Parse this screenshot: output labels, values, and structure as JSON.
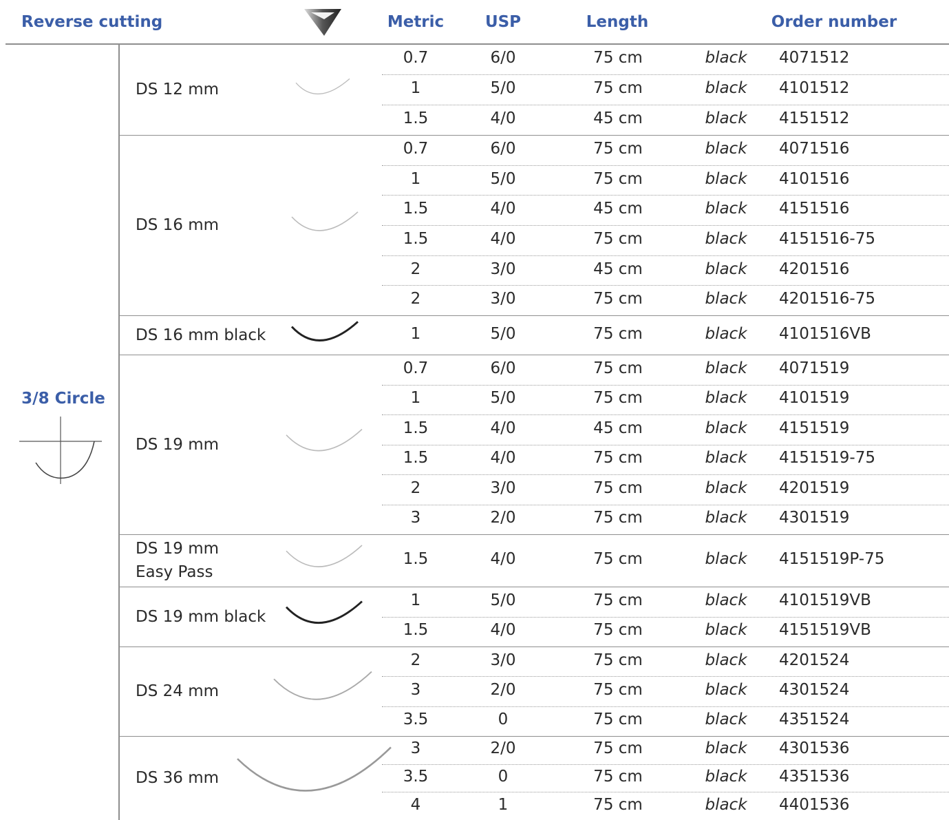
{
  "header": {
    "title": "Reverse cutting",
    "columns": [
      "Metric",
      "USP",
      "Length",
      "Order number"
    ]
  },
  "curvature": "3/8 Circle",
  "groups": [
    {
      "name": "DS 12 mm",
      "rows": [
        [
          "0.7",
          "6/0",
          "75 cm",
          "black",
          "4071512"
        ],
        [
          "1",
          "5/0",
          "75 cm",
          "black",
          "4101512"
        ],
        [
          "1.5",
          "4/0",
          "45 cm",
          "black",
          "4151512"
        ]
      ]
    },
    {
      "name": "DS 16 mm",
      "rows": [
        [
          "0.7",
          "6/0",
          "75 cm",
          "black",
          "4071516"
        ],
        [
          "1",
          "5/0",
          "75 cm",
          "black",
          "4101516"
        ],
        [
          "1.5",
          "4/0",
          "45 cm",
          "black",
          "4151516"
        ],
        [
          "1.5",
          "4/0",
          "75 cm",
          "black",
          "4151516-75"
        ],
        [
          "2",
          "3/0",
          "45 cm",
          "black",
          "4201516"
        ],
        [
          "2",
          "3/0",
          "75 cm",
          "black",
          "4201516-75"
        ]
      ]
    },
    {
      "name": "DS 16 mm black",
      "rows": [
        [
          "1",
          "5/0",
          "75 cm",
          "black",
          "4101516VB"
        ]
      ]
    },
    {
      "name": "DS 19 mm",
      "rows": [
        [
          "0.7",
          "6/0",
          "75 cm",
          "black",
          "4071519"
        ],
        [
          "1",
          "5/0",
          "75 cm",
          "black",
          "4101519"
        ],
        [
          "1.5",
          "4/0",
          "45 cm",
          "black",
          "4151519"
        ],
        [
          "1.5",
          "4/0",
          "75 cm",
          "black",
          "4151519-75"
        ],
        [
          "2",
          "3/0",
          "75 cm",
          "black",
          "4201519"
        ],
        [
          "3",
          "2/0",
          "75 cm",
          "black",
          "4301519"
        ]
      ]
    },
    {
      "name": "DS 19 mm\nEasy Pass",
      "rows": [
        [
          "1.5",
          "4/0",
          "75 cm",
          "black",
          "4151519P-75"
        ]
      ]
    },
    {
      "name": "DS 19 mm black",
      "rows": [
        [
          "1",
          "5/0",
          "75 cm",
          "black",
          "4101519VB"
        ],
        [
          "1.5",
          "4/0",
          "75 cm",
          "black",
          "4151519VB"
        ]
      ]
    },
    {
      "name": "DS 24 mm",
      "rows": [
        [
          "2",
          "3/0",
          "75 cm",
          "black",
          "4201524"
        ],
        [
          "3",
          "2/0",
          "75 cm",
          "black",
          "4301524"
        ],
        [
          "3.5",
          "0",
          "75 cm",
          "black",
          "4351524"
        ]
      ]
    },
    {
      "name": "DS 36 mm",
      "rows": [
        [
          "3",
          "2/0",
          "75 cm",
          "black",
          "4301536"
        ],
        [
          "3.5",
          "0",
          "75 cm",
          "black",
          "4351536"
        ],
        [
          "4",
          "1",
          "75 cm",
          "black",
          "4401536"
        ]
      ]
    }
  ]
}
